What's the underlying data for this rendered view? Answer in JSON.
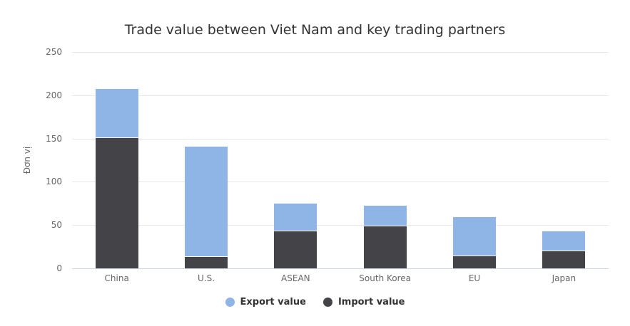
{
  "chart_data": {
    "type": "bar",
    "stacked": true,
    "title": "Trade value between Viet Nam and key trading partners",
    "xlabel": "",
    "ylabel": "Đơn vị",
    "ylim": [
      0,
      250
    ],
    "yticks": [
      0,
      50,
      100,
      150,
      200,
      250
    ],
    "grid": true,
    "legend_position": "bottom",
    "categories": [
      "China",
      "U.S.",
      "ASEAN",
      "South Korea",
      "EU",
      "Japan"
    ],
    "series": [
      {
        "name": "Export value",
        "color": "#8fb4e6",
        "values": [
          56.5,
          127,
          31.5,
          23.3,
          45,
          22
        ]
      },
      {
        "name": "Import value",
        "color": "#434348",
        "values": [
          151,
          14,
          43.4,
          49.4,
          14.5,
          20.7
        ]
      }
    ]
  },
  "legend": {
    "export_label": "Export value",
    "import_label": "Import value"
  }
}
